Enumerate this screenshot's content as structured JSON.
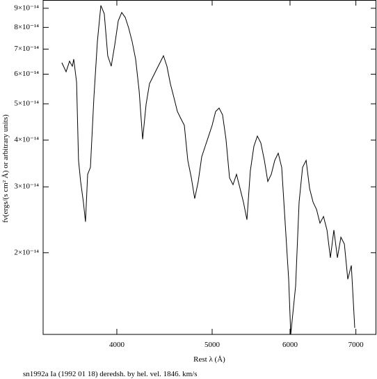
{
  "chart_data": {
    "type": "line",
    "y_label": "fν(ergs/(s cm² Å) or arbitrary units)",
    "x_label": "Rest λ (Å)",
    "caption": "sn1992a Ia (1992 01 18) deredsh. by hel. vel.  1846. km/s",
    "x_log": true,
    "y_log": true,
    "xlim": [
      3366,
      7343
    ],
    "ylim": [
      1.21e-14,
      9.47e-14
    ],
    "xticks": [
      4000,
      5000,
      6000,
      7000
    ],
    "yticks": [
      {
        "value": 2e-14,
        "label": "2×10⁻¹⁴"
      },
      {
        "value": 3e-14,
        "label": "3×10⁻¹⁴"
      },
      {
        "value": 4e-14,
        "label": "4×10⁻¹⁴"
      },
      {
        "value": 5e-14,
        "label": "5×10⁻¹⁴"
      },
      {
        "value": 6e-14,
        "label": "6×10⁻¹⁴"
      },
      {
        "value": 7e-14,
        "label": "7×10⁻¹⁴"
      },
      {
        "value": 8e-14,
        "label": "8×10⁻¹⁴"
      },
      {
        "value": 9e-14,
        "label": "9×10⁻¹⁴"
      }
    ],
    "x": [
      3517,
      3552,
      3581,
      3604,
      3616,
      3640,
      3657,
      3675,
      3699,
      3717,
      3736,
      3760,
      3791,
      3822,
      3853,
      3884,
      3916,
      3948,
      3980,
      4013,
      4046,
      4079,
      4112,
      4146,
      4180,
      4214,
      4249,
      4283,
      4318,
      4354,
      4389,
      4425,
      4461,
      4498,
      4534,
      4572,
      4609,
      4646,
      4685,
      4723,
      4762,
      4800,
      4840,
      4879,
      4919,
      4959,
      5000,
      5041,
      5082,
      5124,
      5165,
      5208,
      5250,
      5293,
      5337,
      5380,
      5424,
      5468,
      5513,
      5558,
      5604,
      5650,
      5696,
      5742,
      5789,
      5837,
      5884,
      5932,
      5981,
      6010,
      6079,
      6129,
      6179,
      6230,
      6281,
      6333,
      6384,
      6436,
      6489,
      6542,
      6595,
      6649,
      6704,
      6759,
      6814,
      6869,
      6926,
      6982
    ],
    "series": [
      {
        "color": "#000000",
        "values": [
          6.44e-14,
          6.09e-14,
          6.5e-14,
          6.3e-14,
          6.58e-14,
          5.71e-14,
          3.53e-14,
          3.1e-14,
          2.73e-14,
          2.42e-14,
          3.24e-14,
          3.38e-14,
          5.2e-14,
          7.33e-14,
          9.16e-14,
          8.7e-14,
          6.72e-14,
          6.3e-14,
          7.17e-14,
          8.33e-14,
          8.77e-14,
          8.51e-14,
          7.98e-14,
          7.33e-14,
          6.58e-14,
          5.42e-14,
          4.02e-14,
          4.98e-14,
          5.66e-14,
          5.91e-14,
          6.17e-14,
          6.44e-14,
          6.72e-14,
          6.3e-14,
          5.66e-14,
          5.2e-14,
          4.77e-14,
          4.57e-14,
          4.38e-14,
          3.53e-14,
          3.17e-14,
          2.79e-14,
          3.1e-14,
          3.61e-14,
          3.85e-14,
          4.1e-14,
          4.38e-14,
          4.77e-14,
          4.87e-14,
          4.67e-14,
          4.02e-14,
          3.17e-14,
          3.04e-14,
          3.24e-14,
          2.97e-14,
          2.73e-14,
          2.45e-14,
          3.31e-14,
          3.85e-14,
          4.1e-14,
          3.93e-14,
          3.53e-14,
          3.1e-14,
          3.24e-14,
          3.53e-14,
          3.69e-14,
          3.38e-14,
          2.4e-14,
          1.7e-14,
          1.21e-14,
          1.63e-14,
          2.73e-14,
          3.38e-14,
          3.53e-14,
          2.97e-14,
          2.73e-14,
          2.61e-14,
          2.4e-14,
          2.5e-14,
          2.3e-14,
          1.94e-14,
          2.3e-14,
          1.94e-14,
          2.2e-14,
          2.11e-14,
          1.7e-14,
          1.85e-14,
          1.26e-14
        ]
      }
    ]
  }
}
